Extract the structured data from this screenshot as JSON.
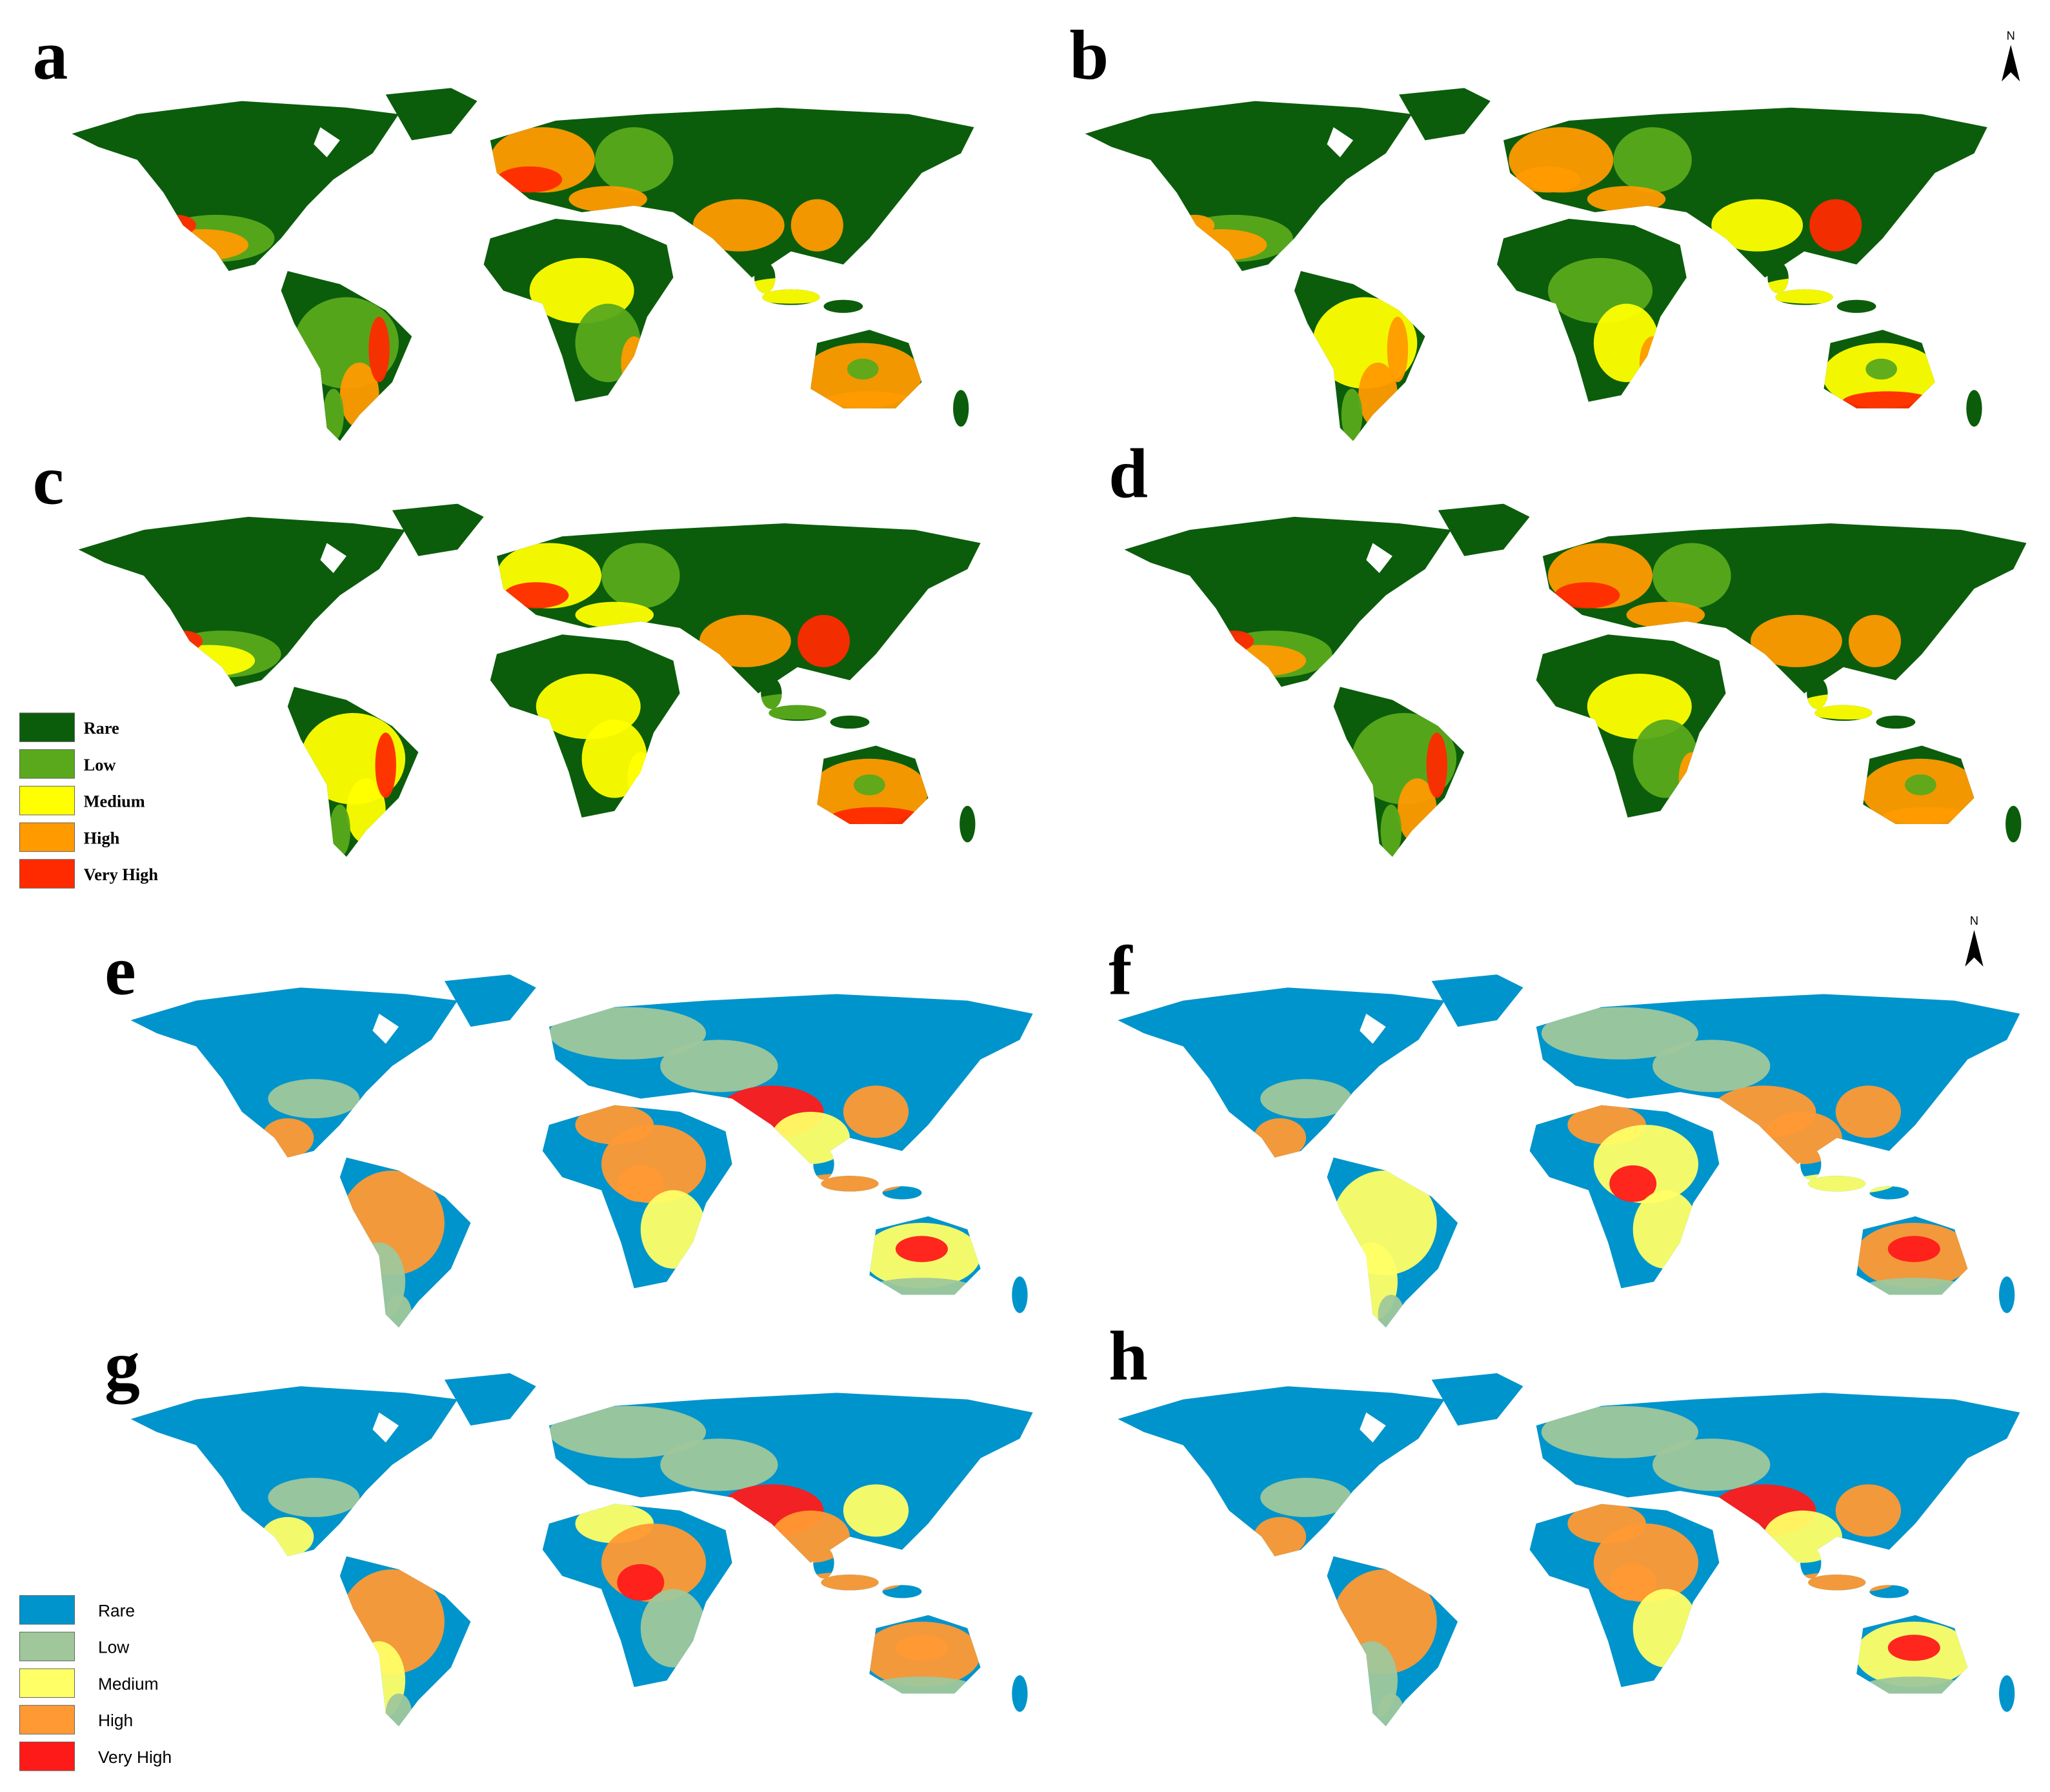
{
  "groups": [
    {
      "panels": [
        "a",
        "b",
        "c",
        "d"
      ],
      "legend": [
        {
          "label": "Rare",
          "color": "#0b5d0b"
        },
        {
          "label": "Low",
          "color": "#5aa91c"
        },
        {
          "label": "Medium",
          "color": "#ffff00"
        },
        {
          "label": "High",
          "color": "#ff9a00"
        },
        {
          "label": "Very High",
          "color": "#ff2a00"
        }
      ]
    },
    {
      "panels": [
        "e",
        "f",
        "g",
        "h"
      ],
      "legend": [
        {
          "label": "Rare",
          "color": "#0094cc"
        },
        {
          "label": "Low",
          "color": "#9fc79b"
        },
        {
          "label": "Medium",
          "color": "#ffff66"
        },
        {
          "label": "High",
          "color": "#ff9933"
        },
        {
          "label": "Very High",
          "color": "#ff1a1a"
        }
      ]
    }
  ],
  "north_arrows": [
    {
      "label": "N"
    },
    {
      "label": "N"
    }
  ]
}
